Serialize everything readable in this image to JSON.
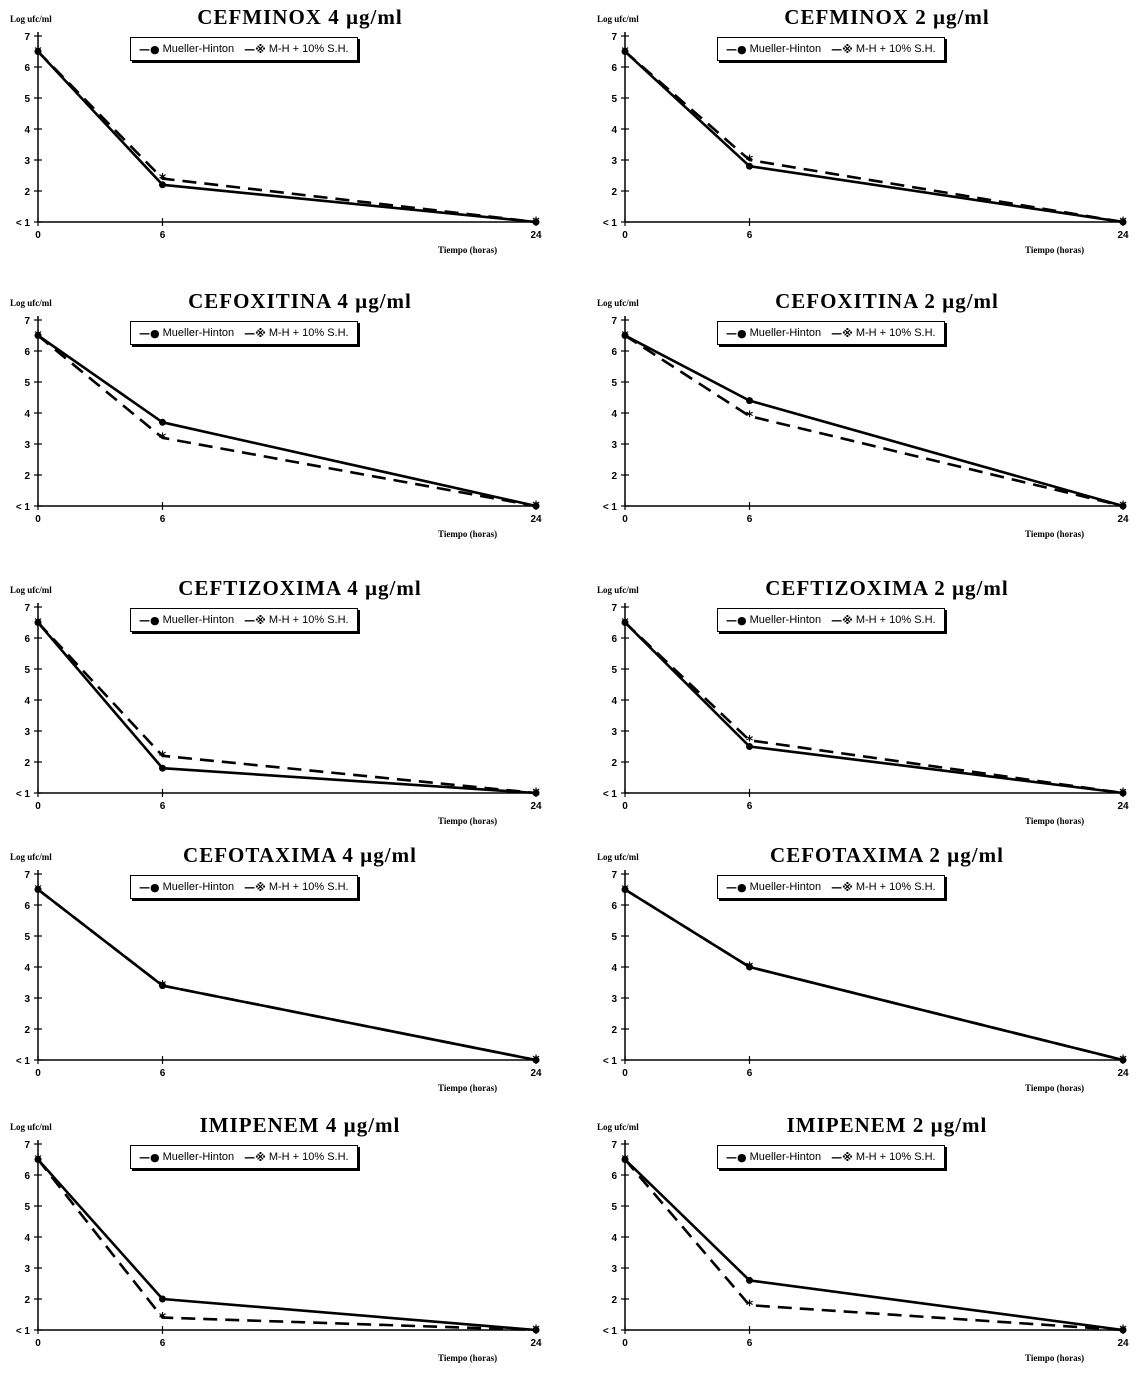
{
  "legend": {
    "series1_label": "Mueller-Hinton",
    "series2_label": "M-H + 10% S.H.",
    "series1_icon": "filled-circle-icon",
    "series2_icon": "asterisk-icon"
  },
  "y_axis_label": "Log ufc/ml",
  "x_axis_label": "Tiempo (horas)",
  "y_ticks": [
    "< 1",
    "2",
    "3",
    "4",
    "5",
    "6",
    "7"
  ],
  "x_ticks": [
    "0",
    "6",
    "24"
  ],
  "chart_data": [
    {
      "type": "line",
      "title": "CEFMINOX 4 µg/ml",
      "x": [
        0,
        6,
        24
      ],
      "xlabel": "Tiempo (horas)",
      "ylabel": "Log ufc/ml",
      "ylim": [
        1,
        7
      ],
      "series": [
        {
          "name": "Mueller-Hinton",
          "values": [
            6.5,
            2.2,
            1.0
          ]
        },
        {
          "name": "M-H + 10% S.H.",
          "values": [
            6.5,
            2.4,
            1.0
          ]
        }
      ]
    },
    {
      "type": "line",
      "title": "CEFMINOX 2 µg/ml",
      "x": [
        0,
        6,
        24
      ],
      "xlabel": "Tiempo (horas)",
      "ylabel": "Log ufc/ml",
      "ylim": [
        1,
        7
      ],
      "series": [
        {
          "name": "Mueller-Hinton",
          "values": [
            6.5,
            2.8,
            1.0
          ]
        },
        {
          "name": "M-H + 10% S.H.",
          "values": [
            6.5,
            3.0,
            1.0
          ]
        }
      ]
    },
    {
      "type": "line",
      "title": "CEFOXITINA 4 µg/ml",
      "x": [
        0,
        6,
        24
      ],
      "xlabel": "Tiempo (horas)",
      "ylabel": "Log ufc/ml",
      "ylim": [
        1,
        7
      ],
      "series": [
        {
          "name": "Mueller-Hinton",
          "values": [
            6.5,
            3.7,
            1.0
          ]
        },
        {
          "name": "M-H + 10% S.H.",
          "values": [
            6.5,
            3.2,
            1.0
          ]
        }
      ]
    },
    {
      "type": "line",
      "title": "CEFOXITINA 2 µg/ml",
      "x": [
        0,
        6,
        24
      ],
      "xlabel": "Tiempo (horas)",
      "ylabel": "Log ufc/ml",
      "ylim": [
        1,
        7
      ],
      "series": [
        {
          "name": "Mueller-Hinton",
          "values": [
            6.5,
            4.4,
            1.0
          ]
        },
        {
          "name": "M-H + 10% S.H.",
          "values": [
            6.5,
            3.9,
            1.0
          ]
        }
      ]
    },
    {
      "type": "line",
      "title": "CEFTIZOXIMA 4 µg/ml",
      "x": [
        0,
        6,
        24
      ],
      "xlabel": "Tiempo (horas)",
      "ylabel": "Log ufc/ml",
      "ylim": [
        1,
        7
      ],
      "series": [
        {
          "name": "Mueller-Hinton",
          "values": [
            6.5,
            1.8,
            1.0
          ]
        },
        {
          "name": "M-H + 10% S.H.",
          "values": [
            6.5,
            2.2,
            1.0
          ]
        }
      ]
    },
    {
      "type": "line",
      "title": "CEFTIZOXIMA 2 µg/ml",
      "x": [
        0,
        6,
        24
      ],
      "xlabel": "Tiempo (horas)",
      "ylabel": "Log ufc/ml",
      "ylim": [
        1,
        7
      ],
      "series": [
        {
          "name": "Mueller-Hinton",
          "values": [
            6.5,
            2.5,
            1.0
          ]
        },
        {
          "name": "M-H + 10% S.H.",
          "values": [
            6.5,
            2.7,
            1.0
          ]
        }
      ]
    },
    {
      "type": "line",
      "title": "CEFOTAXIMA 4 µg/ml",
      "x": [
        0,
        6,
        24
      ],
      "xlabel": "Tiempo (horas)",
      "ylabel": "Log ufc/ml",
      "ylim": [
        1,
        7
      ],
      "series": [
        {
          "name": "Mueller-Hinton",
          "values": [
            6.5,
            3.4,
            1.0
          ]
        },
        {
          "name": "M-H + 10% S.H.",
          "values": [
            6.5,
            3.4,
            1.0
          ]
        }
      ]
    },
    {
      "type": "line",
      "title": "CEFOTAXIMA 2 µg/ml",
      "x": [
        0,
        6,
        24
      ],
      "xlabel": "Tiempo (horas)",
      "ylabel": "Log ufc/ml",
      "ylim": [
        1,
        7
      ],
      "series": [
        {
          "name": "Mueller-Hinton",
          "values": [
            6.5,
            4.0,
            1.0
          ]
        },
        {
          "name": "M-H + 10% S.H.",
          "values": [
            6.5,
            4.0,
            1.0
          ]
        }
      ]
    },
    {
      "type": "line",
      "title": "IMIPENEM 4 µg/ml",
      "x": [
        0,
        6,
        24
      ],
      "xlabel": "Tiempo (horas)",
      "ylabel": "Log ufc/ml",
      "ylim": [
        1,
        7
      ],
      "series": [
        {
          "name": "Mueller-Hinton",
          "values": [
            6.5,
            2.0,
            1.0
          ]
        },
        {
          "name": "M-H + 10% S.H.",
          "values": [
            6.5,
            1.4,
            1.0
          ]
        }
      ]
    },
    {
      "type": "line",
      "title": "IMIPENEM 2 µg/ml",
      "x": [
        0,
        6,
        24
      ],
      "xlabel": "Tiempo (horas)",
      "ylabel": "Log ufc/ml",
      "ylim": [
        1,
        7
      ],
      "series": [
        {
          "name": "Mueller-Hinton",
          "values": [
            6.5,
            2.6,
            1.0
          ]
        },
        {
          "name": "M-H + 10% S.H.",
          "values": [
            6.5,
            1.8,
            1.0
          ]
        }
      ]
    }
  ]
}
